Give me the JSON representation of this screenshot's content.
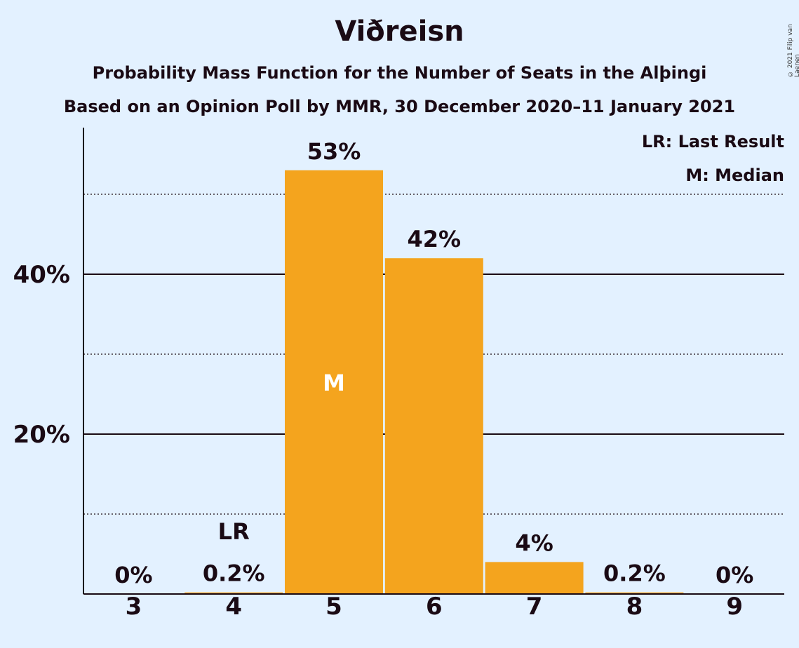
{
  "header": {
    "title": "Viðreisn",
    "subtitle": "Probability Mass Function for the Number of Seats in the Alþingi",
    "subtitle2": "Based on an Opinion Poll by MMR, 30 December 2020–11 January 2021",
    "copyright": "© 2021 Filip van Laenen"
  },
  "legend": {
    "last_result": "LR: Last Result",
    "median": "M: Median",
    "placement": "top-right"
  },
  "colors": {
    "background": "#e3f1ff",
    "bar": "#f4a41e",
    "median_text": "#ffffff",
    "text": "#1a0a14"
  },
  "chart_data": {
    "type": "bar",
    "title": "Viðreisn",
    "xlabel": "",
    "ylabel": "",
    "categories": [
      "3",
      "4",
      "5",
      "6",
      "7",
      "8",
      "9"
    ],
    "values": [
      0,
      0.2,
      53,
      42,
      4,
      0.2,
      0
    ],
    "value_labels": [
      "0%",
      "0.2%",
      "53%",
      "42%",
      "4%",
      "0.2%",
      "0%"
    ],
    "ylim": [
      0,
      58
    ],
    "y_ticks": [
      {
        "value": 20,
        "label": "20%",
        "style": "solid"
      },
      {
        "value": 40,
        "label": "40%",
        "style": "solid"
      }
    ],
    "y_minor_gridlines": [
      10,
      30,
      50
    ],
    "annotations": [
      {
        "category": "4",
        "text": "LR",
        "meaning": "last-result"
      },
      {
        "category": "5",
        "text": "M",
        "meaning": "median"
      }
    ],
    "grid": true
  }
}
